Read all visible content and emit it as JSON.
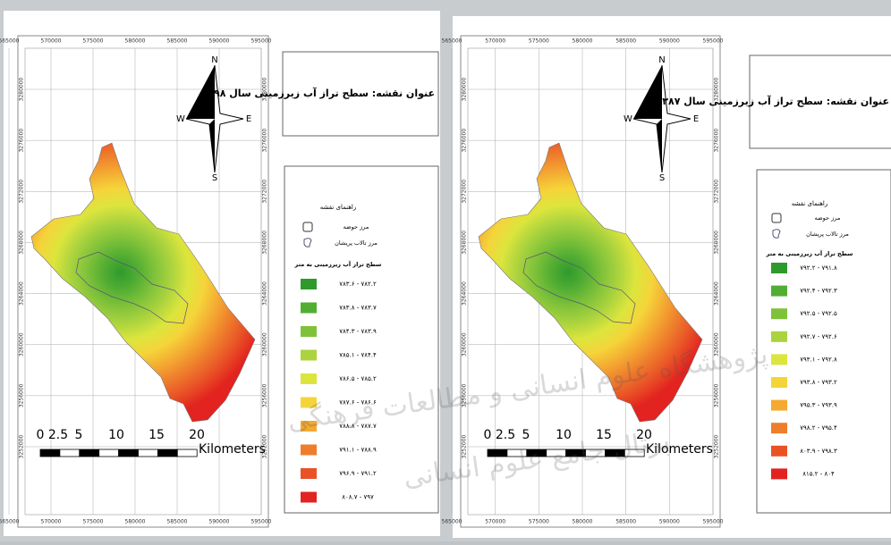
{
  "maps": [
    {
      "title": "عنوان نقشه: سطح تراز آب زیرزمینی سال ۱۳۹۸",
      "x_ticks": [
        565000,
        570000,
        575000,
        580000,
        585000,
        590000,
        595000
      ],
      "y_ticks": [
        3280000,
        3276000,
        3272000,
        3268000,
        3264000,
        3260000,
        3256000,
        3252000
      ],
      "north": "N",
      "south": "S",
      "east": "E",
      "west": "W",
      "scale": {
        "labels": [
          "0",
          "2.5",
          "5",
          "10",
          "15",
          "20"
        ],
        "unit": "Kilometers"
      },
      "legend": {
        "title": "راهنمای نقشه",
        "basin": "مرز حوضه",
        "wetland": "مرز تالاب پریشان",
        "classes_title": "سطح تراز آب زیرزمینی به متر",
        "classes": [
          {
            "label": "۷۸۲.۲ - ۷۸۳.۶",
            "color": "#2f9a2c"
          },
          {
            "label": "۷۸۳.۷ - ۷۸۳.۸",
            "color": "#52ad33"
          },
          {
            "label": "۷۸۳.۹ - ۷۸۴.۳",
            "color": "#7fc23a"
          },
          {
            "label": "۷۸۴.۴ - ۷۸۵.۱",
            "color": "#abd33e"
          },
          {
            "label": "۷۸۵.۲ - ۷۸۶.۵",
            "color": "#dce53d"
          },
          {
            "label": "۷۸۶.۶ - ۷۸۷.۶",
            "color": "#f5d43a"
          },
          {
            "label": "۷۸۷.۷ - ۷۸۸.۸",
            "color": "#f4a932"
          },
          {
            "label": "۷۸۸.۹ - ۷۹۱.۱",
            "color": "#ee7d2c"
          },
          {
            "label": "۷۹۱.۲ - ۷۹۶.۹",
            "color": "#e95227"
          },
          {
            "label": "۷۹۷ - ۸۰۸.۷",
            "color": "#e2231f"
          }
        ]
      }
    },
    {
      "title": "عنوان نقشه: سطح تراز آب زیرزمینی سال ۱۳۸۷",
      "x_ticks": [
        565000,
        570000,
        575000,
        580000,
        585000,
        590000,
        595000
      ],
      "y_ticks": [
        3280000,
        3276000,
        3272000,
        3268000,
        3264000,
        3260000,
        3256000,
        3252000
      ],
      "north": "N",
      "south": "S",
      "east": "E",
      "west": "W",
      "scale": {
        "labels": [
          "0",
          "2.5",
          "5",
          "10",
          "15",
          "20"
        ],
        "unit": "Kilometers"
      },
      "legend": {
        "title": "راهنمای نقشه",
        "basin": "مرز حوضه",
        "wetland": "مرز تالاب پریشان",
        "classes_title": "سطح تراز آب زیرزمینی به متر",
        "classes": [
          {
            "label": "۷۹۱.۸ - ۷۹۲.۲",
            "color": "#2f9a2c"
          },
          {
            "label": "۷۹۲.۳ - ۷۹۲.۴",
            "color": "#52ad33"
          },
          {
            "label": "۷۹۲.۵ - ۷۹۲.۵",
            "color": "#7fc23a"
          },
          {
            "label": "۷۹۲.۶ - ۷۹۲.۷",
            "color": "#abd33e"
          },
          {
            "label": "۷۹۲.۸ - ۷۹۳.۱",
            "color": "#dce53d"
          },
          {
            "label": "۷۹۳.۲ - ۷۹۳.۸",
            "color": "#f5d43a"
          },
          {
            "label": "۷۹۳.۹ - ۷۹۵.۳",
            "color": "#f4a932"
          },
          {
            "label": "۷۹۵.۴ - ۷۹۸.۲",
            "color": "#ee7d2c"
          },
          {
            "label": "۷۹۸.۳ - ۸۰۳.۹",
            "color": "#e95227"
          },
          {
            "label": "۸۰۴ - ۸۱۵.۲",
            "color": "#e2231f"
          }
        ]
      }
    }
  ],
  "watermark": {
    "line1": "پژوهشگاه علوم انسانی و مطالعات فرهنگی",
    "line2": "پرتال جامع علوم انسانی"
  }
}
